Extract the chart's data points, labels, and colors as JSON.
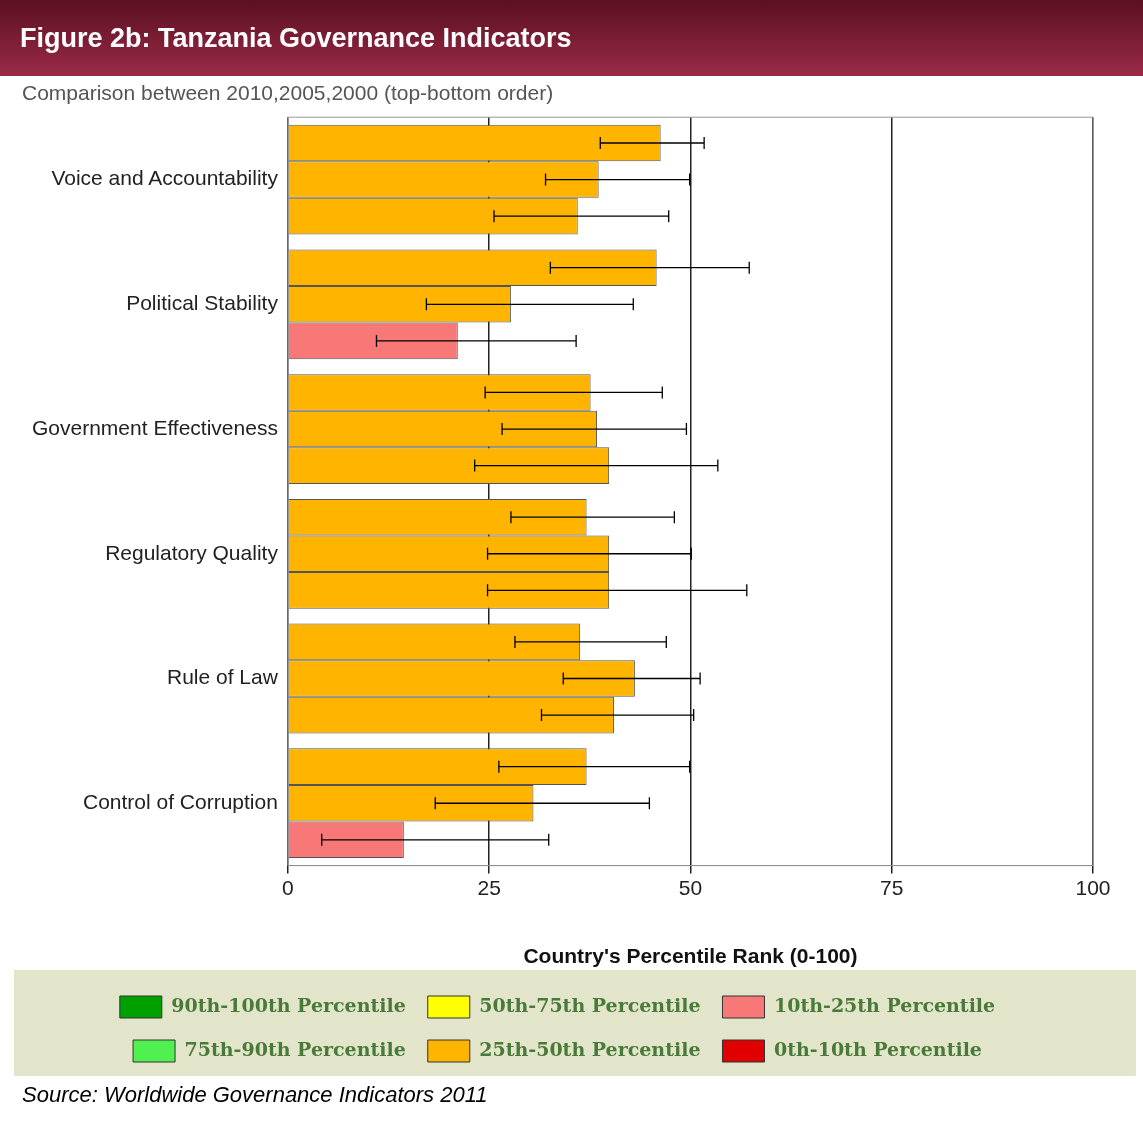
{
  "chart_data": {
    "type": "bar",
    "orientation": "horizontal",
    "title": "Figure 2b: Tanzania Governance Indicators",
    "subtitle": "Comparison between 2010,2005,2000 (top-bottom order)",
    "xlabel": "Country's Percentile Rank (0-100)",
    "categories": [
      "Voice and Accountability",
      "Political Stability",
      "Government Effectiveness",
      "Regulatory Quality",
      "Rule of Law",
      "Control of Corruption"
    ],
    "xlim": [
      0,
      100
    ],
    "xticks": [
      0,
      25,
      50,
      75,
      100
    ],
    "grid": "x",
    "legend": "bottom",
    "series": [
      {
        "colors": [
          "#ffb400",
          "#ffb400",
          "#ffb400",
          "#ffb400",
          "#ffb400",
          "#ffb400"
        ],
        "values": [
          46.3,
          45.8,
          37.6,
          37.1,
          36.3,
          37.1
        ],
        "errors": [
          [
            38.8,
            51.7
          ],
          [
            32.6,
            57.3
          ],
          [
            24.5,
            46.5
          ],
          [
            27.7,
            48.0
          ],
          [
            28.2,
            47.0
          ],
          [
            26.2,
            49.9
          ]
        ]
      },
      {
        "colors": [
          "#ffb400",
          "#ffb400",
          "#ffb400",
          "#ffb400",
          "#ffb400",
          "#ffb400"
        ],
        "values": [
          38.6,
          27.7,
          38.4,
          39.9,
          43.1,
          30.5
        ],
        "errors": [
          [
            32.0,
            49.9
          ],
          [
            17.2,
            42.9
          ],
          [
            26.6,
            49.5
          ],
          [
            24.8,
            50.1
          ],
          [
            34.2,
            51.2
          ],
          [
            18.3,
            44.9
          ]
        ]
      },
      {
        "colors": [
          "#ffb400",
          "#f87878",
          "#ffb400",
          "#ffb400",
          "#ffb400",
          "#f87878"
        ],
        "values": [
          36.0,
          21.1,
          39.9,
          39.9,
          40.5,
          14.4
        ],
        "errors": [
          [
            25.6,
            47.3
          ],
          [
            11.0,
            35.8
          ],
          [
            23.2,
            53.4
          ],
          [
            24.8,
            57.0
          ],
          [
            31.5,
            50.4
          ],
          [
            4.2,
            32.4
          ]
        ]
      },
      {
        "name": "90th-100th Percentile",
        "color": "#00a000",
        "values": [
          null,
          null,
          null,
          null,
          null,
          null
        ]
      },
      {
        "name": "50th-75th Percentile",
        "color": "#ffff00",
        "values": [
          null,
          null,
          null,
          null,
          null,
          null
        ]
      },
      {
        "name": "10th-25th Percentile",
        "color": "#f87878",
        "values": [
          null,
          null,
          null,
          null,
          null,
          null
        ]
      },
      {
        "name": "75th-90th Percentile",
        "color": "#50f050",
        "values": [
          null,
          null,
          null,
          null,
          null,
          null
        ]
      },
      {
        "name": "25th-50th Percentile",
        "color": "#ffb400",
        "values": [
          null,
          null,
          null,
          null,
          null,
          null
        ]
      },
      {
        "name": "0th-10th Percentile",
        "color": "#e00000",
        "values": [
          null,
          null,
          null,
          null,
          null,
          null
        ]
      }
    ],
    "annotations": [
      "Source: Worldwide Governance Indicators 2011"
    ]
  }
}
